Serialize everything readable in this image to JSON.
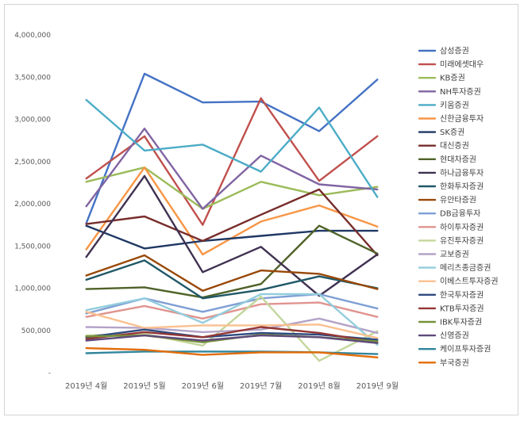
{
  "chart_data": {
    "type": "line",
    "title": "",
    "xlabel": "",
    "ylabel": "",
    "ylim": [
      0,
      4000000
    ],
    "yticks": [
      0,
      500000,
      1000000,
      1500000,
      2000000,
      2500000,
      3000000,
      3500000,
      4000000
    ],
    "ytick_labels": [
      "-",
      "500,000",
      "1,000,000",
      "1,500,000",
      "2,000,000",
      "2,500,000",
      "3,000,000",
      "3,500,000",
      "4,000,000"
    ],
    "grid": false,
    "legend_position": "right",
    "categories": [
      "2019년 4월",
      "2019년 5월",
      "2019년 6월",
      "2019년 7월",
      "2019년 8월",
      "2019년 9월"
    ],
    "series": [
      {
        "name": "삼성증권",
        "color": "#4472c4",
        "values": [
          1770000,
          3540000,
          3200000,
          3210000,
          2860000,
          3470000
        ]
      },
      {
        "name": "미래에셋대우",
        "color": "#c0504d",
        "values": [
          2300000,
          2800000,
          1750000,
          3250000,
          2270000,
          2800000
        ]
      },
      {
        "name": "KB증권",
        "color": "#9bbb59",
        "values": [
          2260000,
          2430000,
          1940000,
          2260000,
          2100000,
          2200000
        ]
      },
      {
        "name": "NH투자증권",
        "color": "#8064a2",
        "values": [
          1970000,
          2890000,
          1940000,
          2570000,
          2230000,
          2170000
        ]
      },
      {
        "name": "키움증권",
        "color": "#4bacc6",
        "values": [
          3230000,
          2630000,
          2700000,
          2380000,
          3140000,
          2080000
        ]
      },
      {
        "name": "신한금융투자",
        "color": "#f79646",
        "values": [
          1460000,
          2430000,
          1400000,
          1790000,
          1980000,
          1730000
        ]
      },
      {
        "name": "SK증권",
        "color": "#1f3864",
        "values": [
          1740000,
          1470000,
          1560000,
          1620000,
          1680000,
          1680000
        ]
      },
      {
        "name": "대신증권",
        "color": "#772c2a",
        "values": [
          1760000,
          1850000,
          1560000,
          1870000,
          2170000,
          1390000
        ]
      },
      {
        "name": "현대차증권",
        "color": "#4f6228",
        "values": [
          990000,
          1010000,
          890000,
          1050000,
          1740000,
          1410000
        ]
      },
      {
        "name": "하나금융투자",
        "color": "#3f3151",
        "values": [
          1370000,
          2330000,
          1190000,
          1490000,
          910000,
          1400000
        ]
      },
      {
        "name": "한화투자증권",
        "color": "#205867",
        "values": [
          1100000,
          1330000,
          880000,
          980000,
          1140000,
          1000000
        ]
      },
      {
        "name": "유안타증권",
        "color": "#984807",
        "values": [
          1150000,
          1390000,
          970000,
          1210000,
          1170000,
          990000
        ]
      },
      {
        "name": "DB금융투자",
        "color": "#7f9fd4",
        "values": [
          700000,
          880000,
          720000,
          880000,
          930000,
          760000
        ]
      },
      {
        "name": "하이투자증권",
        "color": "#e0948f",
        "values": [
          660000,
          790000,
          640000,
          810000,
          830000,
          660000
        ]
      },
      {
        "name": "유진투자증권",
        "color": "#c3d69b",
        "values": [
          440000,
          460000,
          320000,
          900000,
          140000,
          490000
        ]
      },
      {
        "name": "교보증권",
        "color": "#b3a2c7",
        "values": [
          540000,
          530000,
          480000,
          510000,
          640000,
          470000
        ]
      },
      {
        "name": "메리츠종금증권",
        "color": "#93cddd",
        "values": [
          740000,
          880000,
          590000,
          930000,
          930000,
          330000
        ]
      },
      {
        "name": "이베스트투자증권",
        "color": "#fac090",
        "values": [
          720000,
          530000,
          560000,
          560000,
          570000,
          410000
        ]
      },
      {
        "name": "한국투자증권",
        "color": "#2e4a7f",
        "values": [
          420000,
          510000,
          420000,
          470000,
          450000,
          390000
        ]
      },
      {
        "name": "KTB투자증권",
        "color": "#943634",
        "values": [
          400000,
          480000,
          420000,
          540000,
          470000,
          360000
        ]
      },
      {
        "name": "IBK투자증권",
        "color": "#76923c",
        "values": [
          430000,
          440000,
          360000,
          450000,
          420000,
          370000
        ]
      },
      {
        "name": "신영증권",
        "color": "#5f497a",
        "values": [
          380000,
          440000,
          380000,
          440000,
          420000,
          350000
        ]
      },
      {
        "name": "케이프투자증권",
        "color": "#31859c",
        "values": [
          230000,
          250000,
          250000,
          250000,
          240000,
          220000
        ]
      },
      {
        "name": "부국증권",
        "color": "#e36c09",
        "values": [
          290000,
          270000,
          210000,
          240000,
          240000,
          180000
        ]
      }
    ]
  }
}
